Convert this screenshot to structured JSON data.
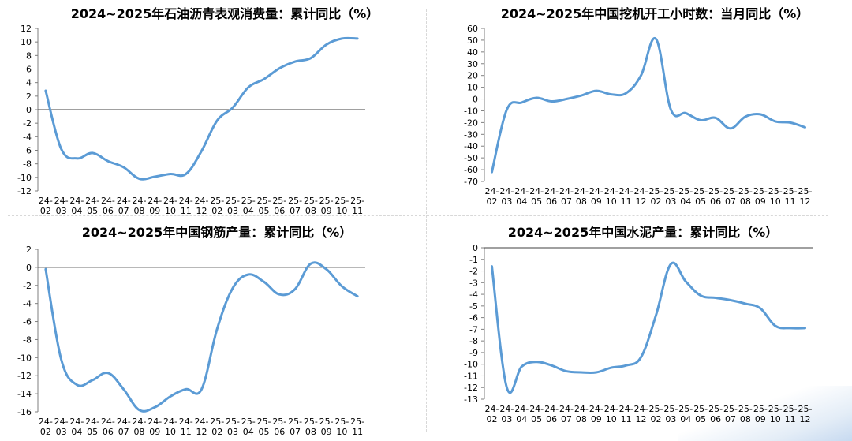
{
  "chart_data": [
    {
      "type": "line",
      "title": "2024~2025年石油沥青表观消费量：累计同比（%）",
      "categories": [
        "24-02",
        "24-03",
        "24-04",
        "24-05",
        "24-06",
        "24-07",
        "24-08",
        "24-09",
        "24-10",
        "24-11",
        "24-12",
        "25-02",
        "25-03",
        "25-04",
        "25-05",
        "25-06",
        "25-07",
        "25-08",
        "25-09",
        "25-10",
        "25-11"
      ],
      "values": [
        2.8,
        -5.8,
        -7.2,
        -6.4,
        -7.6,
        -8.5,
        -10.2,
        -9.9,
        -9.5,
        -9.5,
        -6.1,
        -1.6,
        0.3,
        3.3,
        4.5,
        6.1,
        7.1,
        7.6,
        9.6,
        10.5,
        10.5
      ],
      "ylim": [
        -12,
        12
      ],
      "yticks": [
        -12,
        -10,
        -8,
        -6,
        -4,
        -2,
        0,
        2,
        4,
        6,
        8,
        10,
        12
      ],
      "line_color": "#5b9bd5"
    },
    {
      "type": "line",
      "title": "2024~2025年中国挖机开工小时数：当月同比（%）",
      "categories": [
        "24-02",
        "24-03",
        "24-04",
        "24-05",
        "24-06",
        "24-07",
        "24-08",
        "24-09",
        "24-10",
        "24-11",
        "24-12",
        "25-02",
        "25-03",
        "25-04",
        "25-05",
        "25-06",
        "25-07",
        "25-08",
        "25-09",
        "25-10",
        "25-11",
        "25-12"
      ],
      "values": [
        -62,
        -9,
        -3,
        1,
        -2,
        0,
        3,
        7,
        4,
        5,
        20,
        51,
        -9,
        -12,
        -18,
        -16,
        -25,
        -15,
        -13,
        -19,
        -20,
        -24
      ],
      "ylim": [
        -70,
        60
      ],
      "yticks": [
        -70,
        -60,
        -50,
        -40,
        -30,
        -20,
        -10,
        0,
        10,
        20,
        30,
        40,
        50,
        60
      ],
      "line_color": "#5b9bd5"
    },
    {
      "type": "line",
      "title": "2024~2025年中国钢筋产量：累计同比（%）",
      "categories": [
        "24-02",
        "24-03",
        "24-04",
        "24-05",
        "24-06",
        "24-07",
        "24-08",
        "24-09",
        "24-10",
        "24-11",
        "24-12",
        "25-02",
        "25-03",
        "25-04",
        "25-05",
        "25-06",
        "25-07",
        "25-08",
        "25-09",
        "25-10",
        "25-11"
      ],
      "values": [
        -0.2,
        -10.2,
        -13.0,
        -12.5,
        -11.7,
        -13.5,
        -15.8,
        -15.5,
        -14.3,
        -13.5,
        -13.5,
        -6.8,
        -2.3,
        -0.8,
        -1.6,
        -3.0,
        -2.4,
        0.4,
        -0.2,
        -2.1,
        -3.2
      ],
      "ylim": [
        -16,
        2
      ],
      "yticks": [
        -16,
        -14,
        -12,
        -10,
        -8,
        -6,
        -4,
        -2,
        0,
        2
      ],
      "line_color": "#5b9bd5"
    },
    {
      "type": "line",
      "title": "2024~2025年中国水泥产量：累计同比（%）",
      "categories": [
        "24-02",
        "24-03",
        "24-04",
        "24-05",
        "24-06",
        "24-07",
        "24-08",
        "24-09",
        "24-10",
        "24-11",
        "24-12",
        "25-02",
        "25-03",
        "25-04",
        "25-05",
        "25-06",
        "25-07",
        "25-08",
        "25-09",
        "25-10",
        "25-11",
        "25-12"
      ],
      "values": [
        -1.6,
        -12.0,
        -10.2,
        -9.8,
        -10.1,
        -10.6,
        -10.7,
        -10.7,
        -10.3,
        -10.1,
        -9.4,
        -5.8,
        -1.4,
        -2.9,
        -4.1,
        -4.3,
        -4.5,
        -4.8,
        -5.2,
        -6.7,
        -6.9,
        -6.9
      ],
      "ylim": [
        -13,
        0
      ],
      "yticks": [
        -13,
        -12,
        -11,
        -10,
        -9,
        -8,
        -7,
        -6,
        -5,
        -4,
        -3,
        -2,
        -1,
        0
      ],
      "line_color": "#5b9bd5"
    }
  ]
}
